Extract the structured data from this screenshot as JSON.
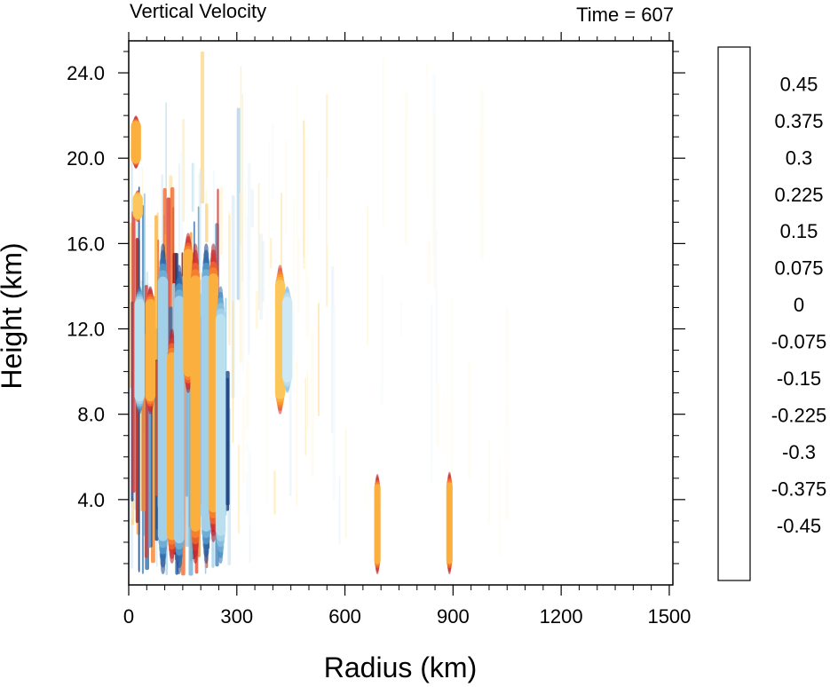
{
  "chart_data": {
    "type": "heatmap",
    "title": "Vertical Velocity",
    "right_title": "Time = 607",
    "xlabel": "Radius (km)",
    "ylabel": "Height (km)",
    "xlim": [
      0,
      1510
    ],
    "ylim": [
      0,
      25.5
    ],
    "x_ticks": [
      "0",
      "300",
      "600",
      "900",
      "1200",
      "1500"
    ],
    "y_ticks": [
      "4.0",
      "8.0",
      "12.0",
      "16.0",
      "20.0",
      "24.0"
    ],
    "x_tick_values": [
      0,
      300,
      600,
      900,
      1200,
      1500
    ],
    "y_tick_values": [
      4,
      8,
      12,
      16,
      20,
      24
    ],
    "colorbar": {
      "labels": [
        "0.45",
        "0.375",
        "0.3",
        "0.225",
        "0.15",
        "0.075",
        "0",
        "-0.075",
        "-0.15",
        "-0.225",
        "-0.3",
        "-0.375",
        "-0.45"
      ],
      "colors": [
        "#8c1419",
        "#b11920",
        "#c9242c",
        "#d9382f",
        "#e5502f",
        "#f06a2e",
        "#f7832f",
        "#fa9c33",
        "#fbb23f",
        "#fcc75d",
        "#fdd985",
        "#fee7aa",
        "#fff2cd",
        "#fffae9",
        "#ffffff",
        "#ffffff",
        "#f2f9fd",
        "#e2f1f9",
        "#cfe8f4",
        "#bcdfef",
        "#a5d2e9",
        "#8cc3e2",
        "#72b1d8",
        "#589dcc",
        "#4187bd",
        "#2e70ae",
        "#21599b",
        "#1c4586",
        "#17326f"
      ]
    },
    "features": [
      {
        "x": 10,
        "z0": 0.5,
        "z1": 25,
        "w": 0.0,
        "sign": "mixed"
      },
      {
        "x": 20,
        "z0": 19.5,
        "z1": 22,
        "w": 0.5,
        "sign": "positive"
      },
      {
        "x": 25,
        "z0": 17,
        "z1": 18.5,
        "w": 0.4,
        "sign": "positive"
      },
      {
        "x": 30,
        "z0": 8,
        "z1": 14,
        "w": -0.4,
        "sign": "negative"
      },
      {
        "x": 60,
        "z0": 8,
        "z1": 14,
        "w": 0.5,
        "sign": "positive"
      },
      {
        "x": 95,
        "z0": 0.5,
        "z1": 16,
        "w": -0.5,
        "sign": "negative"
      },
      {
        "x": 120,
        "z0": 1,
        "z1": 12,
        "w": 0.5,
        "sign": "positive"
      },
      {
        "x": 140,
        "z0": 0.5,
        "z1": 15,
        "w": -0.5,
        "sign": "negative"
      },
      {
        "x": 165,
        "z0": 9,
        "z1": 16.5,
        "w": 0.5,
        "sign": "positive"
      },
      {
        "x": 185,
        "z0": 1,
        "z1": 16,
        "w": 0.5,
        "sign": "positive"
      },
      {
        "x": 215,
        "z0": 1,
        "z1": 16,
        "w": -0.5,
        "sign": "negative"
      },
      {
        "x": 235,
        "z0": 2,
        "z1": 16,
        "w": 0.5,
        "sign": "positive"
      },
      {
        "x": 255,
        "z0": 1,
        "z1": 14,
        "w": -0.4,
        "sign": "negative"
      },
      {
        "x": 420,
        "z0": 8,
        "z1": 15,
        "w": 0.4,
        "sign": "positive"
      },
      {
        "x": 440,
        "z0": 9,
        "z1": 14,
        "w": -0.3,
        "sign": "negative"
      },
      {
        "x": 690,
        "z0": 0.5,
        "z1": 5.2,
        "w": 0.5,
        "sign": "positive"
      },
      {
        "x": 890,
        "z0": 0.5,
        "z1": 5.3,
        "w": 0.5,
        "sign": "positive"
      }
    ]
  }
}
